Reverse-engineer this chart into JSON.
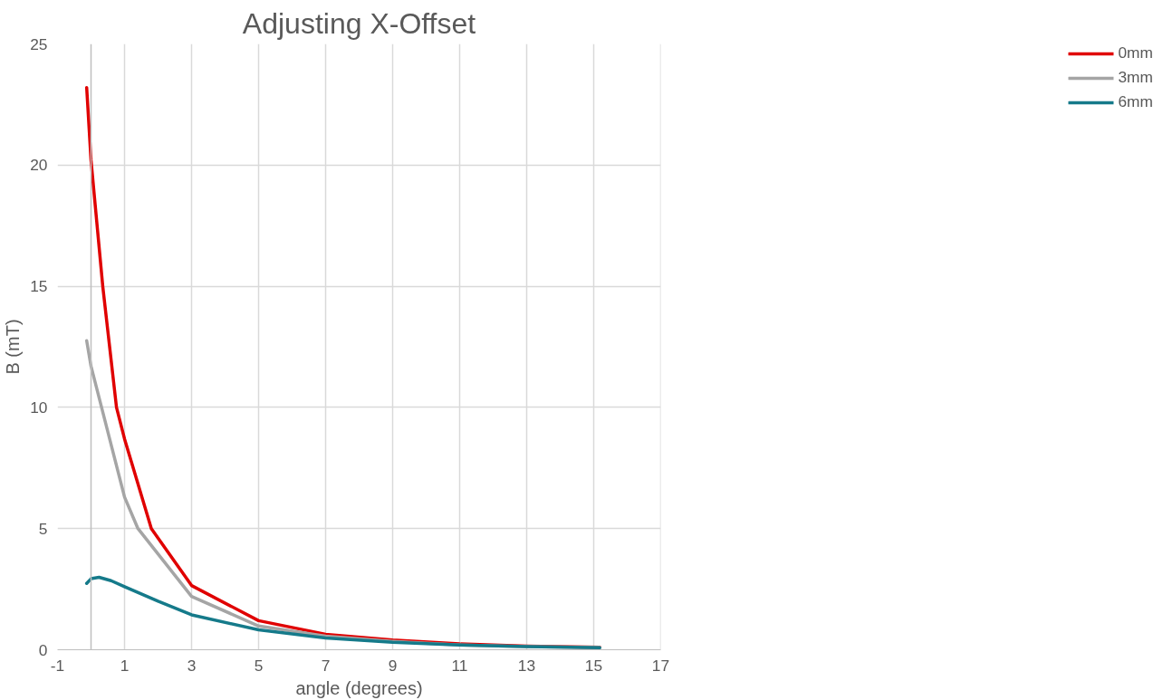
{
  "chart_data": {
    "type": "line",
    "title": "Adjusting X-Offset",
    "xlabel": "angle (degrees)",
    "ylabel": "B (mT)",
    "xlim": [
      -1,
      17
    ],
    "xticks": [
      -1,
      1,
      3,
      5,
      7,
      9,
      11,
      13,
      15,
      17
    ],
    "ylim": [
      0,
      25
    ],
    "yticks": [
      0,
      5,
      10,
      15,
      20,
      25
    ],
    "grid": true,
    "legend": "right",
    "marker": "none",
    "line_style": "solid",
    "ref_lines": [
      {
        "axis": "x",
        "value": 0,
        "color": "#bfbfbf"
      }
    ],
    "series": [
      {
        "name": "0mm",
        "color": "#e00000",
        "x": [
          -0.13,
          0,
          0.35,
          0.76,
          1,
          1.8,
          3,
          5,
          7,
          9,
          11,
          13,
          15.18
        ],
        "values": [
          23.2,
          20.2,
          15,
          10,
          8.7,
          5,
          2.65,
          1.2,
          0.64,
          0.4,
          0.24,
          0.15,
          0.1
        ]
      },
      {
        "name": "3mm",
        "color": "#a5a5a5",
        "x": [
          -0.13,
          0,
          0.5,
          1,
          1.4,
          3,
          5,
          7,
          9,
          11,
          13,
          15.18
        ],
        "values": [
          12.75,
          11.7,
          9.0,
          6.3,
          5,
          2.2,
          0.98,
          0.56,
          0.35,
          0.2,
          0.13,
          0.09
        ]
      },
      {
        "name": "6mm",
        "color": "#157a8a",
        "x": [
          -0.13,
          0,
          0.24,
          0.6,
          1,
          2,
          3,
          5,
          7,
          9,
          11,
          13,
          15.18
        ],
        "values": [
          2.74,
          2.93,
          2.99,
          2.85,
          2.6,
          2.0,
          1.44,
          0.82,
          0.49,
          0.31,
          0.2,
          0.13,
          0.08
        ]
      }
    ]
  }
}
